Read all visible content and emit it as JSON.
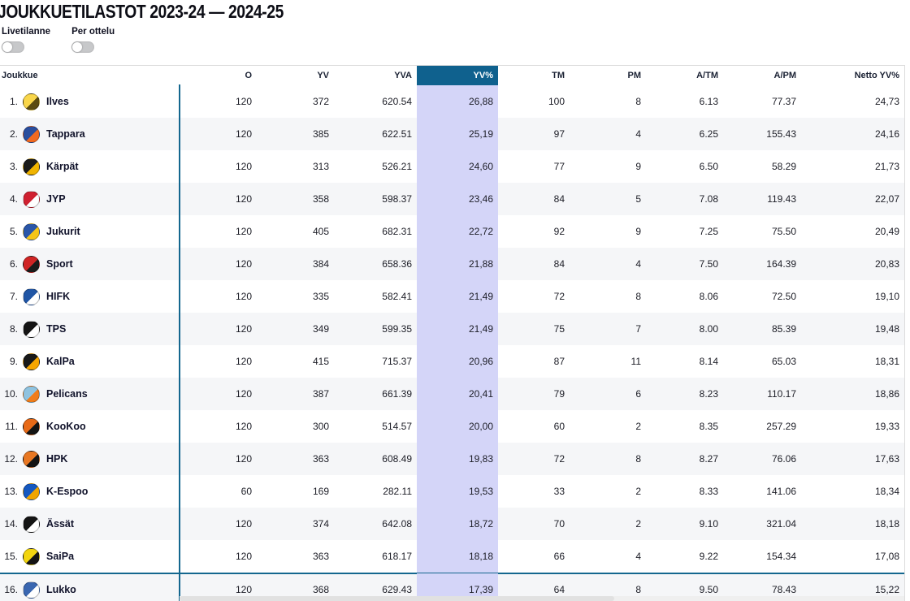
{
  "page": {
    "title": "JOUKKUETILASTOT 2023-24 — 2024-25"
  },
  "toggles": [
    {
      "label": "Livetilanne",
      "state": "off"
    },
    {
      "label": "Per ottelu",
      "state": "off"
    }
  ],
  "colors": {
    "header_highlight": "#0f618e",
    "column_highlight": "#d4d5f8",
    "row_alt": "#f5f6f8",
    "divider_line": "#14678f",
    "toggle_track": "#c7c8ca"
  },
  "table": {
    "columns": [
      {
        "key": "team",
        "label": "Joukkue"
      },
      {
        "key": "o",
        "label": "O"
      },
      {
        "key": "yv",
        "label": "YV"
      },
      {
        "key": "yva",
        "label": "YVA"
      },
      {
        "key": "yvpct",
        "label": "YV%",
        "highlighted": true
      },
      {
        "key": "tm",
        "label": "TM"
      },
      {
        "key": "pm",
        "label": "PM"
      },
      {
        "key": "atm",
        "label": "A/TM"
      },
      {
        "key": "apm",
        "label": "A/PM"
      },
      {
        "key": "netto",
        "label": "Netto YV%"
      }
    ],
    "rows": [
      {
        "rank": "1.",
        "team": "Ilves",
        "logo": {
          "bg": "#f9d64a",
          "fg": "#5a4a10"
        },
        "o": "120",
        "yv": "372",
        "yva": "620.54",
        "yvpct": "26,88",
        "tm": "100",
        "pm": "8",
        "atm": "6.13",
        "apm": "77.37",
        "netto": "24,73"
      },
      {
        "rank": "2.",
        "team": "Tappara",
        "logo": {
          "bg": "#2a4e9e",
          "fg": "#f26a21"
        },
        "o": "120",
        "yv": "385",
        "yva": "622.51",
        "yvpct": "25,19",
        "tm": "97",
        "pm": "4",
        "atm": "6.25",
        "apm": "155.43",
        "netto": "24,16"
      },
      {
        "rank": "3.",
        "team": "Kärpät",
        "logo": {
          "bg": "#1b1b1b",
          "fg": "#f0b400"
        },
        "o": "120",
        "yv": "313",
        "yva": "526.21",
        "yvpct": "24,60",
        "tm": "77",
        "pm": "9",
        "atm": "6.50",
        "apm": "58.29",
        "netto": "21,73"
      },
      {
        "rank": "4.",
        "team": "JYP",
        "logo": {
          "bg": "#cf2030",
          "fg": "#ffffff"
        },
        "o": "120",
        "yv": "358",
        "yva": "598.37",
        "yvpct": "23,46",
        "tm": "84",
        "pm": "5",
        "atm": "7.08",
        "apm": "119.43",
        "netto": "22,07"
      },
      {
        "rank": "5.",
        "team": "Jukurit",
        "logo": {
          "bg": "#2a56a8",
          "fg": "#f5c518"
        },
        "o": "120",
        "yv": "405",
        "yva": "682.31",
        "yvpct": "22,72",
        "tm": "92",
        "pm": "9",
        "atm": "7.25",
        "apm": "75.50",
        "netto": "20,49"
      },
      {
        "rank": "6.",
        "team": "Sport",
        "logo": {
          "bg": "#d02424",
          "fg": "#1b1b1b"
        },
        "o": "120",
        "yv": "384",
        "yva": "658.36",
        "yvpct": "21,88",
        "tm": "84",
        "pm": "4",
        "atm": "7.50",
        "apm": "164.39",
        "netto": "20,83"
      },
      {
        "rank": "7.",
        "team": "HIFK",
        "logo": {
          "bg": "#1f55a5",
          "fg": "#ffffff"
        },
        "o": "120",
        "yv": "335",
        "yva": "582.41",
        "yvpct": "21,49",
        "tm": "72",
        "pm": "8",
        "atm": "8.06",
        "apm": "72.50",
        "netto": "19,10"
      },
      {
        "rank": "8.",
        "team": "TPS",
        "logo": {
          "bg": "#141414",
          "fg": "#ffffff"
        },
        "o": "120",
        "yv": "349",
        "yva": "599.35",
        "yvpct": "21,49",
        "tm": "75",
        "pm": "7",
        "atm": "8.00",
        "apm": "85.39",
        "netto": "19,48"
      },
      {
        "rank": "9.",
        "team": "KalPa",
        "logo": {
          "bg": "#191919",
          "fg": "#f7a600"
        },
        "o": "120",
        "yv": "415",
        "yva": "715.37",
        "yvpct": "20,96",
        "tm": "87",
        "pm": "11",
        "atm": "8.14",
        "apm": "65.03",
        "netto": "18,31"
      },
      {
        "rank": "10.",
        "team": "Pelicans",
        "logo": {
          "bg": "#8fc3e0",
          "fg": "#f07d1a"
        },
        "o": "120",
        "yv": "387",
        "yva": "661.39",
        "yvpct": "20,41",
        "tm": "79",
        "pm": "6",
        "atm": "8.23",
        "apm": "110.17",
        "netto": "18,86"
      },
      {
        "rank": "11.",
        "team": "KooKoo",
        "logo": {
          "bg": "#e86a17",
          "fg": "#141414"
        },
        "o": "120",
        "yv": "300",
        "yva": "514.57",
        "yvpct": "20,00",
        "tm": "60",
        "pm": "2",
        "atm": "8.35",
        "apm": "257.29",
        "netto": "19,33"
      },
      {
        "rank": "12.",
        "team": "HPK",
        "logo": {
          "bg": "#e87722",
          "fg": "#141414"
        },
        "o": "120",
        "yv": "363",
        "yva": "608.49",
        "yvpct": "19,83",
        "tm": "72",
        "pm": "8",
        "atm": "8.27",
        "apm": "76.06",
        "netto": "17,63"
      },
      {
        "rank": "13.",
        "team": "K-Espoo",
        "logo": {
          "bg": "#1558c0",
          "fg": "#f0a500"
        },
        "o": "60",
        "yv": "169",
        "yva": "282.11",
        "yvpct": "19,53",
        "tm": "33",
        "pm": "2",
        "atm": "8.33",
        "apm": "141.06",
        "netto": "18,34"
      },
      {
        "rank": "14.",
        "team": "Ässät",
        "logo": {
          "bg": "#141414",
          "fg": "#ffffff"
        },
        "o": "120",
        "yv": "374",
        "yva": "642.08",
        "yvpct": "18,72",
        "tm": "70",
        "pm": "2",
        "atm": "9.10",
        "apm": "321.04",
        "netto": "18,18"
      },
      {
        "rank": "15.",
        "team": "SaiPa",
        "logo": {
          "bg": "#f2d50f",
          "fg": "#141414"
        },
        "o": "120",
        "yv": "363",
        "yva": "618.17",
        "yvpct": "18,18",
        "tm": "66",
        "pm": "4",
        "atm": "9.22",
        "apm": "154.34",
        "netto": "17,08"
      },
      {
        "rank": "16.",
        "team": "Lukko",
        "logo": {
          "bg": "#3a66b0",
          "fg": "#ffffff"
        },
        "o": "120",
        "yv": "368",
        "yva": "629.43",
        "yvpct": "17,39",
        "tm": "64",
        "pm": "8",
        "atm": "9.50",
        "apm": "78.43",
        "netto": "15,22",
        "divider_above": true
      }
    ]
  }
}
